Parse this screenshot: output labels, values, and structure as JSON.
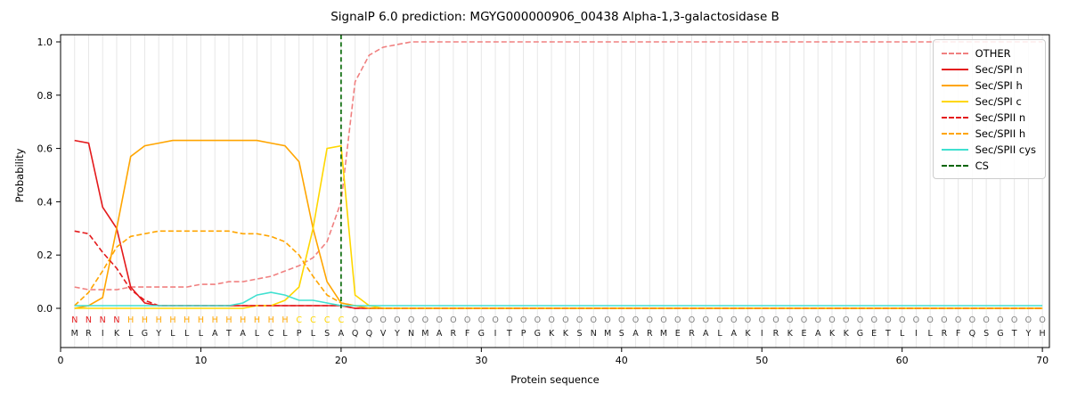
{
  "chart_data": {
    "type": "line",
    "title": "SignalP 6.0 prediction: MGYG000000906_00438 Alpha-1,3-galactosidase B",
    "xlabel": "Protein sequence",
    "ylabel": "Probability",
    "xticks": [
      0,
      10,
      20,
      30,
      40,
      50,
      60,
      70
    ],
    "yticks": [
      0.0,
      0.2,
      0.4,
      0.6,
      0.8,
      1.0
    ],
    "xlim": [
      0,
      70.5
    ],
    "ylim": [
      -0.15,
      1.03
    ],
    "grid": "vertical-per-residue",
    "legend_position": "upper right",
    "sequence": "MRIKLGYLLLATALCLPLSAQQVYNMARFGITPGKKSNMSARMERALAKIRKEAKKGETLILRFQSGTYH",
    "region_labels": "NNNNHHHHHHHHHHHHCCCCOOOOOOOOOOOOOOOOOOOOOOOOOOOOOOOOOOOOOOOOOOOOOOOOOO",
    "region_colors": {
      "N": "#e41a1c",
      "H": "#ffa500",
      "C": "#ffd700",
      "O": "#7f7f7f"
    },
    "sequence_color": "#1a1a1a",
    "cs": {
      "label": "CS",
      "position": 20,
      "color": "#006400",
      "dash": "dashed"
    },
    "series": [
      {
        "id": "other",
        "name": "OTHER",
        "color": "#f08080",
        "dash": "dashed",
        "values": [
          0.08,
          0.07,
          0.07,
          0.07,
          0.08,
          0.08,
          0.08,
          0.08,
          0.08,
          0.09,
          0.09,
          0.1,
          0.1,
          0.11,
          0.12,
          0.14,
          0.16,
          0.19,
          0.25,
          0.4,
          0.85,
          0.95,
          0.98,
          0.99,
          1,
          1,
          1,
          1,
          1,
          1,
          1,
          1,
          1,
          1,
          1,
          1,
          1,
          1,
          1,
          1,
          1,
          1,
          1,
          1,
          1,
          1,
          1,
          1,
          1,
          1,
          1,
          1,
          1,
          1,
          1,
          1,
          1,
          1,
          1,
          1,
          1,
          1,
          1,
          1,
          1,
          1,
          1,
          1,
          1,
          1
        ]
      },
      {
        "id": "sec-spi-n",
        "name": "Sec/SPI n",
        "color": "#e41a1c",
        "dash": "solid",
        "values": [
          0.63,
          0.62,
          0.38,
          0.3,
          0.08,
          0.02,
          0.01,
          0.01,
          0.01,
          0.01,
          0.01,
          0.01,
          0.01,
          0.01,
          0.01,
          0.01,
          0.01,
          0.01,
          0.01,
          0.01,
          0,
          0,
          0,
          0,
          0,
          0,
          0,
          0,
          0,
          0,
          0,
          0,
          0,
          0,
          0,
          0,
          0,
          0,
          0,
          0,
          0,
          0,
          0,
          0,
          0,
          0,
          0,
          0,
          0,
          0,
          0,
          0,
          0,
          0,
          0,
          0,
          0,
          0,
          0,
          0,
          0,
          0,
          0,
          0,
          0,
          0,
          0,
          0,
          0,
          0
        ]
      },
      {
        "id": "sec-spi-h",
        "name": "Sec/SPI h",
        "color": "#ffa500",
        "dash": "solid",
        "values": [
          0,
          0.01,
          0.04,
          0.3,
          0.57,
          0.61,
          0.62,
          0.63,
          0.63,
          0.63,
          0.63,
          0.63,
          0.63,
          0.63,
          0.62,
          0.61,
          0.55,
          0.3,
          0.1,
          0.02,
          0.01,
          0,
          0,
          0,
          0,
          0,
          0,
          0,
          0,
          0,
          0,
          0,
          0,
          0,
          0,
          0,
          0,
          0,
          0,
          0,
          0,
          0,
          0,
          0,
          0,
          0,
          0,
          0,
          0,
          0,
          0,
          0,
          0,
          0,
          0,
          0,
          0,
          0,
          0,
          0,
          0,
          0,
          0,
          0,
          0,
          0,
          0,
          0,
          0,
          0
        ]
      },
      {
        "id": "sec-spi-c",
        "name": "Sec/SPI c",
        "color": "#ffd700",
        "dash": "solid",
        "values": [
          0,
          0,
          0,
          0,
          0,
          0,
          0,
          0,
          0,
          0,
          0,
          0,
          0,
          0.01,
          0.01,
          0.03,
          0.08,
          0.3,
          0.6,
          0.61,
          0.05,
          0.01,
          0,
          0,
          0,
          0,
          0,
          0,
          0,
          0,
          0,
          0,
          0,
          0,
          0,
          0,
          0,
          0,
          0,
          0,
          0,
          0,
          0,
          0,
          0,
          0,
          0,
          0,
          0,
          0,
          0,
          0,
          0,
          0,
          0,
          0,
          0,
          0,
          0,
          0,
          0,
          0,
          0,
          0,
          0,
          0,
          0,
          0,
          0,
          0
        ]
      },
      {
        "id": "sec-spii-n",
        "name": "Sec/SPII n",
        "color": "#e41a1c",
        "dash": "dashed",
        "values": [
          0.29,
          0.28,
          0.21,
          0.15,
          0.07,
          0.03,
          0.01,
          0.01,
          0.01,
          0.01,
          0.01,
          0.01,
          0.01,
          0.01,
          0.01,
          0.01,
          0.01,
          0.01,
          0.01,
          0.01,
          0,
          0,
          0,
          0,
          0,
          0,
          0,
          0,
          0,
          0,
          0,
          0,
          0,
          0,
          0,
          0,
          0,
          0,
          0,
          0,
          0,
          0,
          0,
          0,
          0,
          0,
          0,
          0,
          0,
          0,
          0,
          0,
          0,
          0,
          0,
          0,
          0,
          0,
          0,
          0,
          0,
          0,
          0,
          0,
          0,
          0,
          0,
          0,
          0,
          0
        ]
      },
      {
        "id": "sec-spii-h",
        "name": "Sec/SPII h",
        "color": "#ffa500",
        "dash": "dashed",
        "values": [
          0.01,
          0.06,
          0.14,
          0.23,
          0.27,
          0.28,
          0.29,
          0.29,
          0.29,
          0.29,
          0.29,
          0.29,
          0.28,
          0.28,
          0.27,
          0.25,
          0.2,
          0.12,
          0.05,
          0.02,
          0.01,
          0,
          0,
          0,
          0,
          0,
          0,
          0,
          0,
          0,
          0,
          0,
          0,
          0,
          0,
          0,
          0,
          0,
          0,
          0,
          0,
          0,
          0,
          0,
          0,
          0,
          0,
          0,
          0,
          0,
          0,
          0,
          0,
          0,
          0,
          0,
          0,
          0,
          0,
          0,
          0,
          0,
          0,
          0,
          0,
          0,
          0,
          0,
          0,
          0
        ]
      },
      {
        "id": "sec-spii-cys",
        "name": "Sec/SPII cys",
        "color": "#40e0d0",
        "dash": "solid",
        "values": [
          0.01,
          0.01,
          0.01,
          0.01,
          0.01,
          0.01,
          0.01,
          0.01,
          0.01,
          0.01,
          0.01,
          0.01,
          0.02,
          0.05,
          0.06,
          0.05,
          0.03,
          0.03,
          0.02,
          0.01,
          0.01,
          0.01,
          0.01,
          0.01,
          0.01,
          0.01,
          0.01,
          0.01,
          0.01,
          0.01,
          0.01,
          0.01,
          0.01,
          0.01,
          0.01,
          0.01,
          0.01,
          0.01,
          0.01,
          0.01,
          0.01,
          0.01,
          0.01,
          0.01,
          0.01,
          0.01,
          0.01,
          0.01,
          0.01,
          0.01,
          0.01,
          0.01,
          0.01,
          0.01,
          0.01,
          0.01,
          0.01,
          0.01,
          0.01,
          0.01,
          0.01,
          0.01,
          0.01,
          0.01,
          0.01,
          0.01,
          0.01,
          0.01,
          0.01,
          0.01
        ]
      }
    ]
  }
}
